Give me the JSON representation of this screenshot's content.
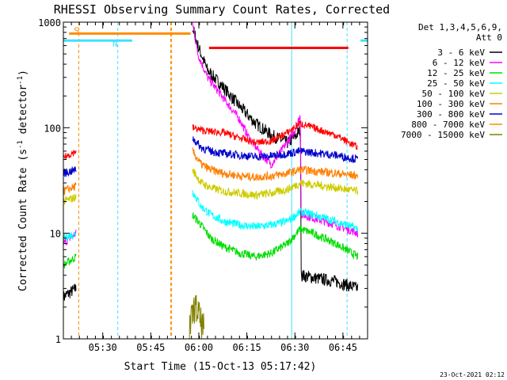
{
  "chart_data": {
    "type": "line",
    "title": "RHESSI Observing Summary Count Rates, Corrected",
    "xlabel": "Start Time (15-Oct-13 05:17:42)",
    "ylabel_main": "Corrected Count Rate (s",
    "ylabel_sup1": "-1",
    "ylabel_mid": " detector",
    "ylabel_sup2": "-1",
    "ylabel_end": ")",
    "yscale": "log",
    "ylim": [
      1,
      1000
    ],
    "xlim_minutes": [
      0,
      95
    ],
    "y_ticks": [
      {
        "value": 1,
        "label": "1"
      },
      {
        "value": 10,
        "label": "10"
      },
      {
        "value": 100,
        "label": "100"
      },
      {
        "value": 1000,
        "label": "1000"
      }
    ],
    "x_ticks": [
      {
        "minute": 12.3,
        "label": "05:30"
      },
      {
        "minute": 27.3,
        "label": "05:45"
      },
      {
        "minute": 42.3,
        "label": "06:00"
      },
      {
        "minute": 57.3,
        "label": "06:15"
      },
      {
        "minute": 72.3,
        "label": "06:30"
      },
      {
        "minute": 87.3,
        "label": "06:45"
      }
    ],
    "legend": {
      "header1": "Det 1,3,4,5,6,9,",
      "header2": "Att 0",
      "placement": "right"
    },
    "series": [
      {
        "name": "3 - 6 keV",
        "color": "#000000",
        "points": [
          [
            0,
            2.5
          ],
          [
            4,
            3
          ],
          [
            4.2,
            null
          ],
          [
            40,
            null
          ],
          [
            40.3,
            900
          ],
          [
            42,
            600
          ],
          [
            45,
            350
          ],
          [
            50,
            240
          ],
          [
            55,
            160
          ],
          [
            60,
            110
          ],
          [
            65,
            85
          ],
          [
            70,
            72
          ],
          [
            72,
            80
          ],
          [
            74,
            95
          ],
          [
            74.3,
            4
          ],
          [
            78,
            3.8
          ],
          [
            85,
            3.5
          ],
          [
            92,
            3
          ]
        ]
      },
      {
        "name": "6 - 12 keV",
        "color": "#ff00ff",
        "points": [
          [
            0,
            8
          ],
          [
            4,
            10
          ],
          [
            4.2,
            null
          ],
          [
            40,
            null
          ],
          [
            40.3,
            1000
          ],
          [
            42,
            500
          ],
          [
            45,
            300
          ],
          [
            50,
            190
          ],
          [
            55,
            120
          ],
          [
            58,
            80
          ],
          [
            62,
            55
          ],
          [
            65,
            45
          ],
          [
            68,
            60
          ],
          [
            72,
            90
          ],
          [
            74,
            130
          ],
          [
            74.3,
            15
          ],
          [
            78,
            14
          ],
          [
            85,
            12
          ],
          [
            92,
            10
          ]
        ]
      },
      {
        "name": "12 - 25 keV",
        "color": "#00dd00",
        "points": [
          [
            0,
            5
          ],
          [
            4,
            6
          ],
          [
            4.2,
            null
          ],
          [
            40,
            null
          ],
          [
            40.3,
            15
          ],
          [
            43,
            12
          ],
          [
            46,
            9
          ],
          [
            50,
            7.5
          ],
          [
            55,
            6.5
          ],
          [
            60,
            6
          ],
          [
            65,
            6.5
          ],
          [
            70,
            8
          ],
          [
            74,
            11
          ],
          [
            78,
            10
          ],
          [
            85,
            8
          ],
          [
            92,
            6
          ]
        ]
      },
      {
        "name": "25 - 50 keV",
        "color": "#00ffff",
        "points": [
          [
            0,
            9
          ],
          [
            4,
            10
          ],
          [
            4.2,
            null
          ],
          [
            40,
            null
          ],
          [
            40.3,
            25
          ],
          [
            43,
            18
          ],
          [
            46,
            15
          ],
          [
            50,
            13
          ],
          [
            55,
            12
          ],
          [
            60,
            11.5
          ],
          [
            65,
            12
          ],
          [
            70,
            13
          ],
          [
            74,
            16
          ],
          [
            78,
            15
          ],
          [
            85,
            13
          ],
          [
            92,
            11
          ]
        ]
      },
      {
        "name": "50 - 100 keV",
        "color": "#cccc00",
        "points": [
          [
            0,
            20
          ],
          [
            4,
            22
          ],
          [
            4.2,
            null
          ],
          [
            40,
            null
          ],
          [
            40.3,
            40
          ],
          [
            43,
            30
          ],
          [
            46,
            27
          ],
          [
            50,
            25
          ],
          [
            55,
            24
          ],
          [
            60,
            23
          ],
          [
            65,
            24
          ],
          [
            70,
            26
          ],
          [
            74,
            30
          ],
          [
            78,
            29
          ],
          [
            85,
            27
          ],
          [
            92,
            25
          ]
        ]
      },
      {
        "name": "100 - 300 keV",
        "color": "#ff7f00",
        "points": [
          [
            0,
            25
          ],
          [
            4,
            28
          ],
          [
            4.2,
            null
          ],
          [
            40,
            null
          ],
          [
            40.3,
            60
          ],
          [
            43,
            45
          ],
          [
            46,
            40
          ],
          [
            50,
            37
          ],
          [
            55,
            35
          ],
          [
            60,
            34
          ],
          [
            65,
            35
          ],
          [
            70,
            37
          ],
          [
            74,
            40
          ],
          [
            78,
            39
          ],
          [
            85,
            37
          ],
          [
            92,
            35
          ]
        ]
      },
      {
        "name": "300 - 800 keV",
        "color": "#0000cc",
        "points": [
          [
            0,
            37
          ],
          [
            4,
            40
          ],
          [
            4.2,
            null
          ],
          [
            40,
            null
          ],
          [
            40.3,
            80
          ],
          [
            43,
            65
          ],
          [
            46,
            60
          ],
          [
            50,
            57
          ],
          [
            55,
            55
          ],
          [
            60,
            53
          ],
          [
            65,
            54
          ],
          [
            70,
            57
          ],
          [
            74,
            60
          ],
          [
            78,
            58
          ],
          [
            85,
            55
          ],
          [
            92,
            50
          ]
        ]
      },
      {
        "name": "800 - 7000 keV",
        "color": "#ff8c00",
        "points": []
      },
      {
        "name": "7000 - 15000 keV",
        "color": "#808000",
        "points": [
          [
            39,
            1.1
          ],
          [
            40,
            1.5
          ],
          [
            41,
            2
          ],
          [
            42,
            1.8
          ],
          [
            43,
            1.4
          ],
          [
            44,
            1.2
          ]
        ]
      }
    ],
    "red_flag_series": [
      [
        0,
        52
      ],
      [
        4,
        60
      ],
      [
        4.2,
        null
      ],
      [
        40,
        null
      ],
      [
        40.3,
        100
      ],
      [
        43,
        95
      ],
      [
        46,
        92
      ],
      [
        50,
        90
      ],
      [
        55,
        80
      ],
      [
        60,
        72
      ],
      [
        65,
        75
      ],
      [
        70,
        90
      ],
      [
        74,
        110
      ],
      [
        78,
        100
      ],
      [
        85,
        85
      ],
      [
        92,
        65
      ]
    ],
    "flag_bars": [
      {
        "label": "S",
        "color": "#ff8c00",
        "x_start": 1.8,
        "x_end": 39.7,
        "y": 780
      },
      {
        "label": "N",
        "color": "#40e0ff",
        "x_start": 0,
        "x_end": 21.5,
        "y": 670
      },
      {
        "label": "",
        "color": "#40e0ff",
        "x_start": 92.8,
        "x_end": 112,
        "y": 670
      },
      {
        "label": "",
        "color": "#ff0000",
        "x_start": 45.5,
        "x_end": 89,
        "y": 570
      }
    ],
    "footer_date": "23-Oct-2021 02:12"
  }
}
